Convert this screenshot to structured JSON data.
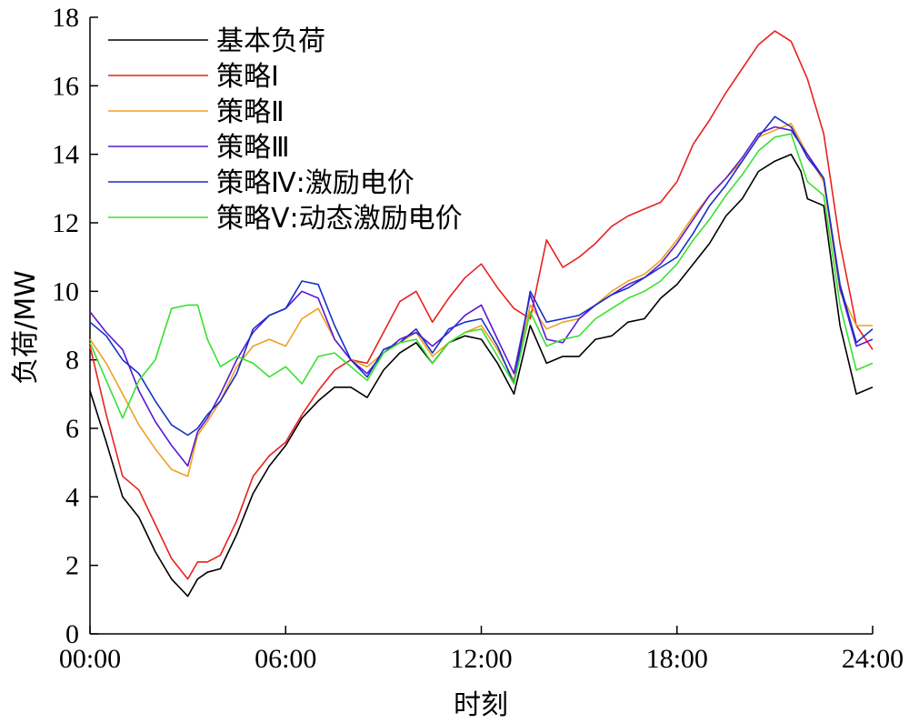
{
  "chart_data": {
    "type": "line",
    "title": "",
    "xlabel": "时刻",
    "ylabel": "负荷/MW",
    "xlim": [
      0,
      24
    ],
    "ylim": [
      0,
      18
    ],
    "x_ticks": [
      {
        "value": 0,
        "label": "00:00"
      },
      {
        "value": 6,
        "label": "06:00"
      },
      {
        "value": 12,
        "label": "12:00"
      },
      {
        "value": 18,
        "label": "18:00"
      },
      {
        "value": 24,
        "label": "24:00"
      }
    ],
    "y_ticks": [
      0,
      2,
      4,
      6,
      8,
      10,
      12,
      14,
      16,
      18
    ],
    "grid": false,
    "legend_position": "top-left",
    "x_unit": "hour",
    "series": [
      {
        "name": "基本负荷",
        "color": "#000000",
        "x": [
          0,
          0.5,
          1,
          1.5,
          2,
          2.5,
          3,
          3.3,
          3.6,
          4,
          4.5,
          5,
          5.5,
          6,
          6.5,
          7,
          7.5,
          8,
          8.5,
          9,
          9.5,
          10,
          10.5,
          11,
          11.5,
          12,
          12.5,
          13,
          13.5,
          14,
          14.5,
          15,
          15.5,
          16,
          16.5,
          17,
          17.5,
          18,
          18.5,
          19,
          19.5,
          20,
          20.5,
          21,
          21.5,
          21.8,
          22,
          22.5,
          23,
          23.5,
          24
        ],
        "y": [
          7.1,
          5.6,
          4.0,
          3.4,
          2.4,
          1.6,
          1.1,
          1.6,
          1.8,
          1.9,
          2.9,
          4.1,
          4.9,
          5.5,
          6.3,
          6.8,
          7.2,
          7.2,
          6.9,
          7.7,
          8.2,
          8.5,
          7.9,
          8.5,
          8.7,
          8.6,
          7.9,
          7.0,
          9.0,
          7.9,
          8.1,
          8.1,
          8.6,
          8.7,
          9.1,
          9.2,
          9.8,
          10.2,
          10.8,
          11.4,
          12.2,
          12.7,
          13.5,
          13.8,
          14.0,
          13.5,
          12.7,
          12.5,
          9.0,
          7.0,
          7.2
        ]
      },
      {
        "name": "策略Ⅰ",
        "color": "#e8211d",
        "x": [
          0,
          0.5,
          1,
          1.5,
          2,
          2.5,
          3,
          3.3,
          3.6,
          4,
          4.5,
          5,
          5.5,
          6,
          6.5,
          7,
          7.5,
          8,
          8.5,
          9,
          9.5,
          10,
          10.5,
          11,
          11.5,
          12,
          12.5,
          13,
          13.5,
          14,
          14.5,
          15,
          15.5,
          16,
          16.5,
          17,
          17.5,
          18,
          18.5,
          19,
          19.5,
          20,
          20.5,
          21,
          21.5,
          22,
          22.5,
          23,
          23.5,
          24
        ],
        "y": [
          8.4,
          6.4,
          4.6,
          4.2,
          3.2,
          2.2,
          1.6,
          2.1,
          2.1,
          2.3,
          3.3,
          4.6,
          5.2,
          5.6,
          6.4,
          7.1,
          7.7,
          8.0,
          7.9,
          8.8,
          9.7,
          10.0,
          9.1,
          9.8,
          10.4,
          10.8,
          10.1,
          9.5,
          9.2,
          11.5,
          10.7,
          11.0,
          11.4,
          11.9,
          12.2,
          12.4,
          12.6,
          13.2,
          14.3,
          15.0,
          15.8,
          16.5,
          17.2,
          17.6,
          17.3,
          16.2,
          14.6,
          11.4,
          9.0,
          8.3
        ]
      },
      {
        "name": "策略Ⅱ",
        "color": "#f0a020",
        "x": [
          0,
          0.5,
          1,
          1.5,
          2,
          2.5,
          3,
          3.3,
          3.6,
          4,
          4.5,
          5,
          5.5,
          6,
          6.5,
          7,
          7.5,
          8,
          8.5,
          9,
          9.5,
          10,
          10.5,
          11,
          11.5,
          12,
          12.5,
          13,
          13.5,
          14,
          14.5,
          15,
          15.5,
          16,
          16.5,
          17,
          17.5,
          18,
          18.5,
          19,
          19.5,
          20,
          20.5,
          21,
          21.5,
          22,
          22.5,
          23,
          23.5,
          24
        ],
        "y": [
          8.6,
          7.9,
          7.0,
          6.1,
          5.4,
          4.8,
          4.6,
          5.8,
          6.2,
          6.8,
          7.8,
          8.4,
          8.6,
          8.4,
          9.2,
          9.5,
          8.6,
          8.0,
          7.8,
          8.2,
          8.5,
          8.8,
          8.1,
          8.5,
          8.8,
          9.0,
          8.3,
          7.4,
          9.6,
          8.9,
          9.1,
          9.2,
          9.6,
          10.0,
          10.3,
          10.5,
          10.9,
          11.5,
          12.2,
          12.8,
          13.3,
          13.8,
          14.5,
          14.7,
          14.9,
          14.0,
          13.2,
          10.0,
          9.0,
          9.0
        ]
      },
      {
        "name": "策略Ⅲ",
        "color": "#5a18d4",
        "x": [
          0,
          0.5,
          1,
          1.5,
          2,
          2.5,
          3,
          3.3,
          3.6,
          4,
          4.5,
          5,
          5.5,
          6,
          6.5,
          7,
          7.5,
          8,
          8.5,
          9,
          9.5,
          10,
          10.5,
          11,
          11.5,
          12,
          12.5,
          13,
          13.5,
          14,
          14.5,
          15,
          15.5,
          16,
          16.5,
          17,
          17.5,
          18,
          18.5,
          19,
          19.5,
          20,
          20.5,
          21,
          21.5,
          22,
          22.5,
          23,
          23.5,
          24
        ],
        "y": [
          9.4,
          8.8,
          8.3,
          7.1,
          6.2,
          5.5,
          4.9,
          5.9,
          6.3,
          7.0,
          8.0,
          8.8,
          9.3,
          9.5,
          10.0,
          9.8,
          8.6,
          8.0,
          7.6,
          8.2,
          8.6,
          8.8,
          8.4,
          8.8,
          9.3,
          9.6,
          8.6,
          7.6,
          9.9,
          8.6,
          8.5,
          9.2,
          9.6,
          9.9,
          10.2,
          10.4,
          10.8,
          11.4,
          12.1,
          12.8,
          13.3,
          13.9,
          14.6,
          14.8,
          14.7,
          14.0,
          13.3,
          10.1,
          8.4,
          8.6
        ]
      },
      {
        "name": "策略Ⅳ:激励电价",
        "color": "#1530c8",
        "x": [
          0,
          0.5,
          1,
          1.5,
          2,
          2.5,
          3,
          3.3,
          3.6,
          4,
          4.5,
          5,
          5.5,
          6,
          6.5,
          7,
          7.5,
          8,
          8.5,
          9,
          9.5,
          10,
          10.5,
          11,
          11.5,
          12,
          12.5,
          13,
          13.5,
          14,
          14.5,
          15,
          15.5,
          16,
          16.5,
          17,
          17.5,
          18,
          18.5,
          19,
          19.5,
          20,
          20.5,
          21,
          21.5,
          22,
          22.5,
          23,
          23.5,
          24
        ],
        "y": [
          9.1,
          8.7,
          8.0,
          7.6,
          6.8,
          6.1,
          5.8,
          6.0,
          6.4,
          6.8,
          7.6,
          8.9,
          9.3,
          9.5,
          10.3,
          10.2,
          9.0,
          8.0,
          7.5,
          8.3,
          8.5,
          8.9,
          8.2,
          8.9,
          9.1,
          9.2,
          8.4,
          7.3,
          10.0,
          9.1,
          9.2,
          9.3,
          9.6,
          9.9,
          10.1,
          10.4,
          10.7,
          11.0,
          11.7,
          12.5,
          13.1,
          13.8,
          14.5,
          15.1,
          14.8,
          13.9,
          13.3,
          10.2,
          8.5,
          8.9
        ]
      },
      {
        "name": "策略Ⅴ:动态激励电价",
        "color": "#39e030",
        "x": [
          0,
          0.5,
          1,
          1.5,
          2,
          2.5,
          3,
          3.3,
          3.6,
          4,
          4.5,
          5,
          5.5,
          6,
          6.5,
          7,
          7.5,
          8,
          8.5,
          9,
          9.5,
          10,
          10.5,
          11,
          11.5,
          12,
          12.5,
          13,
          13.5,
          14,
          14.5,
          15,
          15.5,
          16,
          16.5,
          17,
          17.5,
          18,
          18.5,
          19,
          19.5,
          20,
          20.5,
          21,
          21.5,
          22,
          22.5,
          23,
          23.5,
          24
        ],
        "y": [
          8.5,
          7.4,
          6.3,
          7.4,
          8.0,
          9.5,
          9.6,
          9.6,
          8.6,
          7.8,
          8.1,
          7.9,
          7.5,
          7.8,
          7.3,
          8.1,
          8.2,
          7.8,
          7.4,
          8.2,
          8.5,
          8.6,
          7.9,
          8.5,
          8.8,
          8.9,
          8.1,
          7.3,
          9.4,
          8.4,
          8.6,
          8.7,
          9.2,
          9.5,
          9.8,
          10.0,
          10.3,
          10.8,
          11.5,
          12.1,
          12.8,
          13.4,
          14.1,
          14.5,
          14.6,
          13.2,
          12.8,
          9.6,
          7.7,
          7.9
        ]
      }
    ]
  }
}
